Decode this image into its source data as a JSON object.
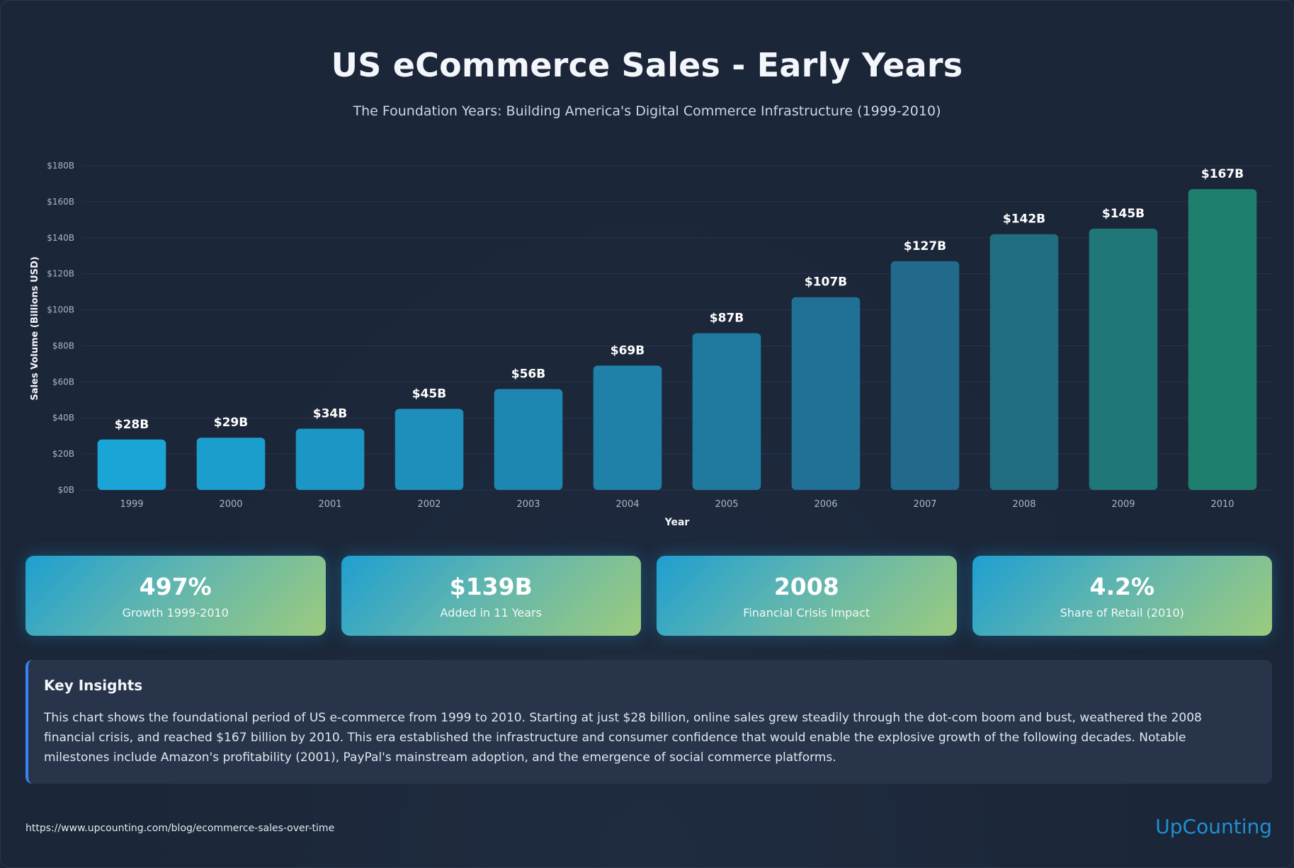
{
  "header": {
    "title": "US eCommerce Sales - Early Years",
    "subtitle": "The Foundation Years: Building America's Digital Commerce Infrastructure (1999-2010)"
  },
  "chart_data": {
    "type": "bar",
    "title": "US eCommerce Sales - Early Years",
    "xlabel": "Year",
    "ylabel": "Sales Volume (Billions USD)",
    "ylim": [
      0,
      180
    ],
    "yticks": [
      0,
      20,
      40,
      60,
      80,
      100,
      120,
      140,
      160,
      180
    ],
    "ytick_labels": [
      "$0B",
      "$20B",
      "$40B",
      "$60B",
      "$80B",
      "$100B",
      "$120B",
      "$140B",
      "$160B",
      "$180B"
    ],
    "grid": true,
    "categories": [
      "1999",
      "2000",
      "2001",
      "2002",
      "2003",
      "2004",
      "2005",
      "2006",
      "2007",
      "2008",
      "2009",
      "2010"
    ],
    "values": [
      28,
      29,
      34,
      45,
      56,
      69,
      87,
      107,
      127,
      142,
      145,
      167
    ],
    "value_labels": [
      "$28B",
      "$29B",
      "$34B",
      "$45B",
      "$56B",
      "$69B",
      "$87B",
      "$107B",
      "$127B",
      "$142B",
      "$145B",
      "$167B"
    ],
    "colors": {
      "start": "#1aa5d6",
      "mid": "#22688a",
      "end": "#1f7f6e",
      "grid": "#26344a",
      "tick_label": "#aab5c5",
      "axis_label": "#f3f6fb"
    }
  },
  "stats": [
    {
      "value": "497%",
      "label": "Growth 1999-2010"
    },
    {
      "value": "$139B",
      "label": "Added in 11 Years"
    },
    {
      "value": "2008",
      "label": "Financial Crisis Impact"
    },
    {
      "value": "4.2%",
      "label": "Share of Retail (2010)"
    }
  ],
  "insights": {
    "title": "Key Insights",
    "text": "This chart shows the foundational period of US e-commerce from 1999 to 2010. Starting at just $28 billion, online sales grew steadily through the dot-com boom and bust, weathered the 2008 financial crisis, and reached $167 billion by 2010. This era established the infrastructure and consumer confidence that would enable the explosive growth of the following decades. Notable milestones include Amazon's profitability (2001), PayPal's mainstream adoption, and the emergence of social commerce platforms."
  },
  "footer": {
    "source": "https://www.upcounting.com/blog/ecommerce-sales-over-time",
    "brand": "UpCounting"
  }
}
